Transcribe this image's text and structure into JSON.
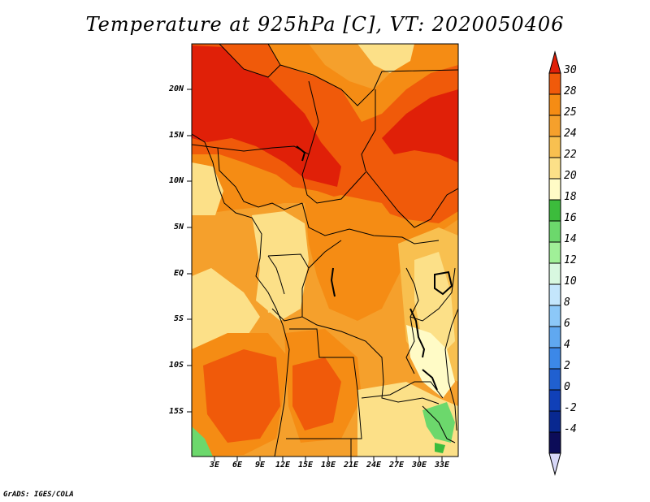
{
  "title": "Temperature at 925hPa [C], VT: 2020050406",
  "credit": "GrADS: IGES/COLA",
  "lat_labels": [
    "20N",
    "15N",
    "10N",
    "5N",
    "EQ",
    "5S",
    "10S",
    "15S"
  ],
  "lon_labels": [
    "3E",
    "6E",
    "9E",
    "12E",
    "15E",
    "18E",
    "21E",
    "24E",
    "27E",
    "30E",
    "33E"
  ],
  "colorbar": {
    "labels": [
      "30",
      "28",
      "25",
      "24",
      "22",
      "20",
      "18",
      "16",
      "14",
      "12",
      "10",
      "8",
      "6",
      "4",
      "2",
      "0",
      "-2",
      "-4"
    ],
    "colors": [
      "#e02008",
      "#f05a0a",
      "#f58c14",
      "#f5a02c",
      "#f8c050",
      "#fce088",
      "#fffbc6",
      "#3cbc3c",
      "#6cd86c",
      "#a0f098",
      "#d8f8e0",
      "#c4e6fc",
      "#8cc8f8",
      "#60a8f0",
      "#3c88e8",
      "#2060d0",
      "#1040b8",
      "#082890",
      "#0c0c58",
      "#d8d8f8"
    ]
  },
  "map_palette": {
    "hot": "#e02008",
    "warm": "#f05a0a",
    "orange": "#f58c14",
    "amber": "#f5a02c",
    "yellow": "#f8c050",
    "pale": "#fce088",
    "cream": "#fffbc6",
    "green": "#6cd86c",
    "darkgreen": "#3cbc3c"
  }
}
